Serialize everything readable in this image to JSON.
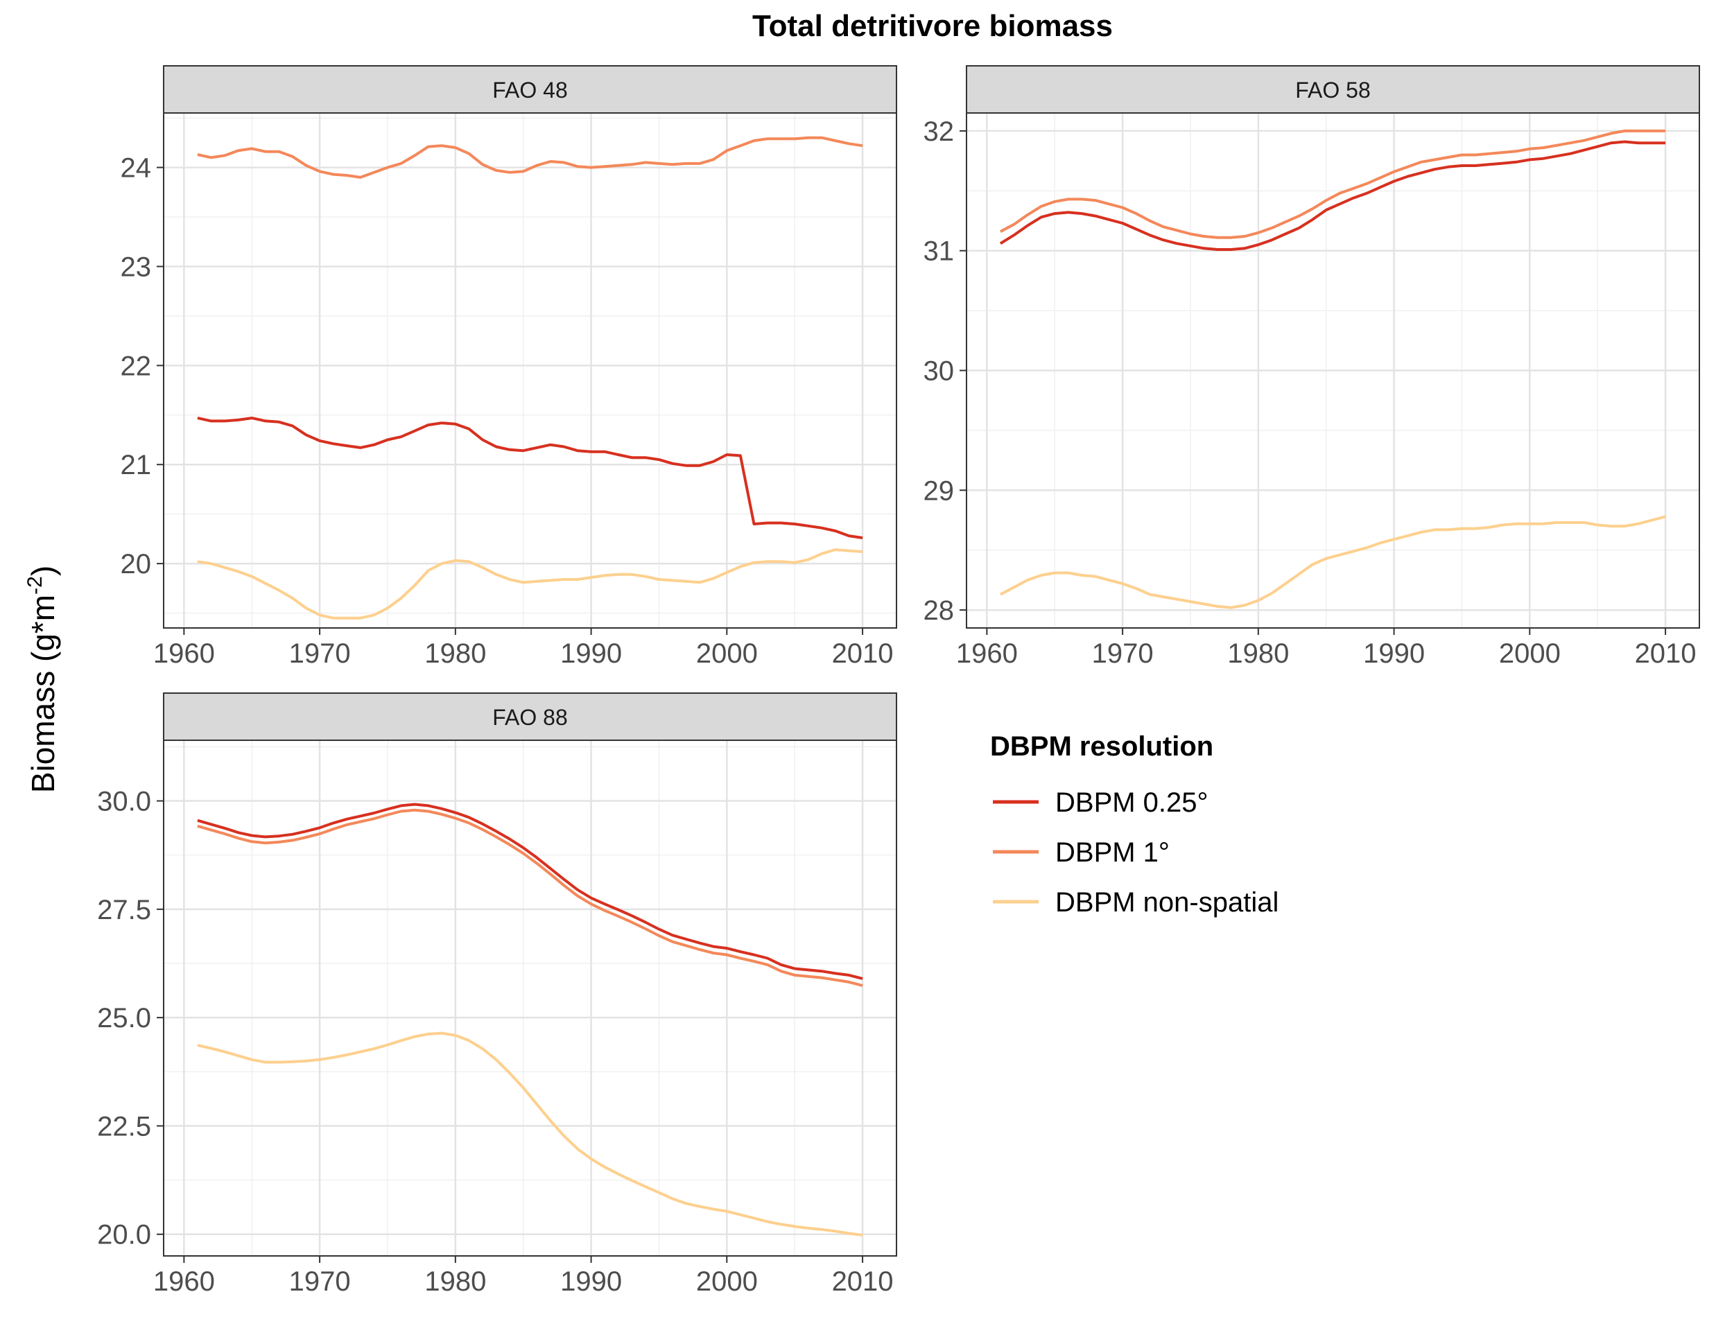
{
  "title": "Total detritivore biomass",
  "ylabel": "Biomass (g*m",
  "ylabel_sup": "-2",
  "ylabel_close": ")",
  "legend": {
    "title": "DBPM resolution",
    "items": [
      {
        "label": "DBPM 0.25°",
        "color": "#d7301f"
      },
      {
        "label": "DBPM 1°",
        "color": "#f4885a"
      },
      {
        "label": "DBPM non-spatial",
        "color": "#fdd08e"
      }
    ]
  },
  "chart_data": [
    {
      "type": "line",
      "panel": "FAO 48",
      "xlim": [
        1958.5,
        2012.5
      ],
      "ylim": [
        19.35,
        24.55
      ],
      "xticks": [
        1960,
        1970,
        1980,
        1990,
        2000,
        2010
      ],
      "yticks": [
        20,
        21,
        22,
        23,
        24
      ],
      "ytick_labels": [
        "20",
        "21",
        "22",
        "23",
        "24"
      ],
      "grid": true,
      "x": [
        1961,
        1962,
        1963,
        1964,
        1965,
        1966,
        1967,
        1968,
        1969,
        1970,
        1971,
        1972,
        1973,
        1974,
        1975,
        1976,
        1977,
        1978,
        1979,
        1980,
        1981,
        1982,
        1983,
        1984,
        1985,
        1986,
        1987,
        1988,
        1989,
        1990,
        1991,
        1992,
        1993,
        1994,
        1995,
        1996,
        1997,
        1998,
        1999,
        2000,
        2001,
        2002,
        2003,
        2004,
        2005,
        2006,
        2007,
        2008,
        2009,
        2010
      ],
      "series": [
        {
          "name": "DBPM 0.25°",
          "values": [
            21.47,
            21.44,
            21.44,
            21.45,
            21.47,
            21.44,
            21.43,
            21.39,
            21.3,
            21.24,
            21.21,
            21.19,
            21.17,
            21.2,
            21.25,
            21.28,
            21.34,
            21.4,
            21.42,
            21.41,
            21.36,
            21.25,
            21.18,
            21.15,
            21.14,
            21.17,
            21.2,
            21.18,
            21.14,
            21.13,
            21.13,
            21.1,
            21.07,
            21.07,
            21.05,
            21.01,
            20.99,
            20.99,
            21.03,
            21.1,
            21.09,
            20.4,
            20.41,
            20.41,
            20.4,
            20.38,
            20.36,
            20.33,
            20.28,
            20.26
          ]
        },
        {
          "name": "DBPM 1°",
          "values": [
            24.13,
            24.1,
            24.12,
            24.17,
            24.19,
            24.16,
            24.16,
            24.11,
            24.02,
            23.96,
            23.93,
            23.92,
            23.9,
            23.95,
            24.0,
            24.04,
            24.12,
            24.21,
            24.22,
            24.2,
            24.14,
            24.03,
            23.97,
            23.95,
            23.96,
            24.02,
            24.06,
            24.05,
            24.01,
            24.0,
            24.01,
            24.02,
            24.03,
            24.05,
            24.04,
            24.03,
            24.04,
            24.04,
            24.08,
            24.17,
            24.22,
            24.27,
            24.29,
            24.29,
            24.29,
            24.3,
            24.3,
            24.27,
            24.24,
            24.22
          ]
        },
        {
          "name": "DBPM non-spatial",
          "values": [
            20.02,
            20.0,
            19.96,
            19.92,
            19.87,
            19.8,
            19.73,
            19.65,
            19.55,
            19.48,
            19.45,
            19.45,
            19.45,
            19.48,
            19.55,
            19.65,
            19.78,
            19.93,
            20.0,
            20.03,
            20.02,
            19.96,
            19.89,
            19.84,
            19.81,
            19.82,
            19.83,
            19.84,
            19.84,
            19.86,
            19.88,
            19.89,
            19.89,
            19.87,
            19.84,
            19.83,
            19.82,
            19.81,
            19.85,
            19.91,
            19.97,
            20.01,
            20.02,
            20.02,
            20.01,
            20.04,
            20.1,
            20.14,
            20.13,
            20.12
          ]
        }
      ]
    },
    {
      "type": "line",
      "panel": "FAO 58",
      "xlim": [
        1958.5,
        2012.5
      ],
      "ylim": [
        27.85,
        32.15
      ],
      "xticks": [
        1960,
        1970,
        1980,
        1990,
        2000,
        2010
      ],
      "yticks": [
        28,
        29,
        30,
        31,
        32
      ],
      "ytick_labels": [
        "28",
        "29",
        "30",
        "31",
        "32"
      ],
      "grid": true,
      "x": [
        1961,
        1962,
        1963,
        1964,
        1965,
        1966,
        1967,
        1968,
        1969,
        1970,
        1971,
        1972,
        1973,
        1974,
        1975,
        1976,
        1977,
        1978,
        1979,
        1980,
        1981,
        1982,
        1983,
        1984,
        1985,
        1986,
        1987,
        1988,
        1989,
        1990,
        1991,
        1992,
        1993,
        1994,
        1995,
        1996,
        1997,
        1998,
        1999,
        2000,
        2001,
        2002,
        2003,
        2004,
        2005,
        2006,
        2007,
        2008,
        2009,
        2010
      ],
      "series": [
        {
          "name": "DBPM 0.25°",
          "values": [
            31.06,
            31.13,
            31.21,
            31.28,
            31.31,
            31.32,
            31.31,
            31.29,
            31.26,
            31.23,
            31.18,
            31.13,
            31.09,
            31.06,
            31.04,
            31.02,
            31.01,
            31.01,
            31.02,
            31.05,
            31.09,
            31.14,
            31.19,
            31.26,
            31.34,
            31.39,
            31.44,
            31.48,
            31.53,
            31.58,
            31.62,
            31.65,
            31.68,
            31.7,
            31.71,
            31.71,
            31.72,
            31.73,
            31.74,
            31.76,
            31.77,
            31.79,
            31.81,
            31.84,
            31.87,
            31.9,
            31.91,
            31.9,
            31.9,
            31.9
          ]
        },
        {
          "name": "DBPM 1°",
          "values": [
            31.16,
            31.22,
            31.3,
            31.37,
            31.41,
            31.43,
            31.43,
            31.42,
            31.39,
            31.36,
            31.31,
            31.25,
            31.2,
            31.17,
            31.14,
            31.12,
            31.11,
            31.11,
            31.12,
            31.15,
            31.19,
            31.24,
            31.29,
            31.35,
            31.42,
            31.48,
            31.52,
            31.56,
            31.61,
            31.66,
            31.7,
            31.74,
            31.76,
            31.78,
            31.8,
            31.8,
            31.81,
            31.82,
            31.83,
            31.85,
            31.86,
            31.88,
            31.9,
            31.92,
            31.95,
            31.98,
            32.0,
            32.0,
            32.0,
            32.0
          ]
        },
        {
          "name": "DBPM non-spatial",
          "values": [
            28.13,
            28.19,
            28.25,
            28.29,
            28.31,
            28.31,
            28.29,
            28.28,
            28.25,
            28.22,
            28.18,
            28.13,
            28.11,
            28.09,
            28.07,
            28.05,
            28.03,
            28.02,
            28.04,
            28.08,
            28.14,
            28.22,
            28.3,
            28.38,
            28.43,
            28.46,
            28.49,
            28.52,
            28.56,
            28.59,
            28.62,
            28.65,
            28.67,
            28.67,
            28.68,
            28.68,
            28.69,
            28.71,
            28.72,
            28.72,
            28.72,
            28.73,
            28.73,
            28.73,
            28.71,
            28.7,
            28.7,
            28.72,
            28.75,
            28.78
          ]
        }
      ]
    },
    {
      "type": "line",
      "panel": "FAO 88",
      "xlim": [
        1958.5,
        2012.5
      ],
      "ylim": [
        19.5,
        31.4
      ],
      "xticks": [
        1960,
        1970,
        1980,
        1990,
        2000,
        2010
      ],
      "yticks": [
        20.0,
        22.5,
        25.0,
        27.5,
        30.0
      ],
      "ytick_labels": [
        "20.0",
        "22.5",
        "25.0",
        "27.5",
        "30.0"
      ],
      "grid": true,
      "x": [
        1961,
        1962,
        1963,
        1964,
        1965,
        1966,
        1967,
        1968,
        1969,
        1970,
        1971,
        1972,
        1973,
        1974,
        1975,
        1976,
        1977,
        1978,
        1979,
        1980,
        1981,
        1982,
        1983,
        1984,
        1985,
        1986,
        1987,
        1988,
        1989,
        1990,
        1991,
        1992,
        1993,
        1994,
        1995,
        1996,
        1997,
        1998,
        1999,
        2000,
        2001,
        2002,
        2003,
        2004,
        2005,
        2006,
        2007,
        2008,
        2009,
        2010
      ],
      "series": [
        {
          "name": "DBPM 0.25°",
          "values": [
            29.55,
            29.46,
            29.37,
            29.27,
            29.2,
            29.17,
            29.19,
            29.23,
            29.3,
            29.38,
            29.49,
            29.58,
            29.65,
            29.72,
            29.81,
            29.89,
            29.92,
            29.89,
            29.82,
            29.73,
            29.62,
            29.47,
            29.3,
            29.12,
            28.92,
            28.69,
            28.44,
            28.19,
            27.95,
            27.76,
            27.62,
            27.49,
            27.35,
            27.2,
            27.04,
            26.9,
            26.81,
            26.72,
            26.64,
            26.6,
            26.52,
            26.45,
            26.37,
            26.22,
            26.13,
            26.1,
            26.07,
            26.02,
            25.98,
            25.9
          ]
        },
        {
          "name": "DBPM 1°",
          "values": [
            29.42,
            29.33,
            29.24,
            29.14,
            29.06,
            29.03,
            29.05,
            29.09,
            29.16,
            29.24,
            29.35,
            29.45,
            29.52,
            29.59,
            29.68,
            29.76,
            29.79,
            29.76,
            29.69,
            29.6,
            29.49,
            29.34,
            29.17,
            28.99,
            28.79,
            28.56,
            28.31,
            28.05,
            27.81,
            27.62,
            27.47,
            27.34,
            27.2,
            27.05,
            26.89,
            26.75,
            26.66,
            26.57,
            26.49,
            26.45,
            26.37,
            26.3,
            26.22,
            26.07,
            25.98,
            25.95,
            25.92,
            25.87,
            25.82,
            25.74
          ]
        },
        {
          "name": "DBPM non-spatial",
          "values": [
            24.36,
            24.29,
            24.21,
            24.12,
            24.03,
            23.97,
            23.97,
            23.98,
            24.0,
            24.03,
            24.08,
            24.14,
            24.21,
            24.28,
            24.37,
            24.47,
            24.56,
            24.62,
            24.64,
            24.59,
            24.47,
            24.28,
            24.03,
            23.72,
            23.38,
            23.0,
            22.62,
            22.27,
            21.97,
            21.74,
            21.55,
            21.39,
            21.24,
            21.1,
            20.96,
            20.82,
            20.71,
            20.64,
            20.58,
            20.53,
            20.45,
            20.37,
            20.29,
            20.23,
            20.18,
            20.14,
            20.11,
            20.07,
            20.02,
            19.98
          ]
        }
      ]
    }
  ]
}
